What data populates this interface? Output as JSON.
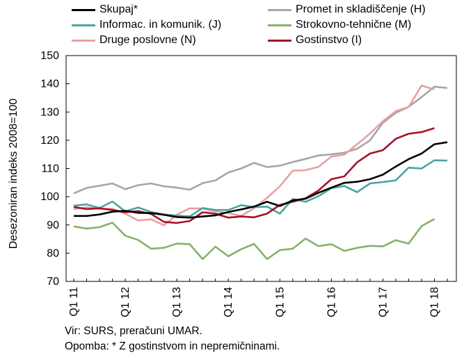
{
  "chart_data": {
    "type": "line",
    "title": "",
    "xlabel": "",
    "ylabel": "Desezoniran indeks 2008=100",
    "ylim": [
      70,
      150
    ],
    "yticks": [
      70,
      80,
      90,
      100,
      110,
      120,
      130,
      140,
      150
    ],
    "x_tick_labels": [
      "Q1 11",
      "Q1 12",
      "Q1 13",
      "Q1 14",
      "Q1 15",
      "Q1 16",
      "Q1 17",
      "Q1 18"
    ],
    "x": [
      "Q1 11",
      "Q2 11",
      "Q3 11",
      "Q4 11",
      "Q1 12",
      "Q2 12",
      "Q3 12",
      "Q4 12",
      "Q1 13",
      "Q2 13",
      "Q3 13",
      "Q4 13",
      "Q1 14",
      "Q2 14",
      "Q3 14",
      "Q4 14",
      "Q1 15",
      "Q2 15",
      "Q3 15",
      "Q4 15",
      "Q1 16",
      "Q2 16",
      "Q3 16",
      "Q4 16",
      "Q1 17",
      "Q2 17",
      "Q3 17",
      "Q4 17",
      "Q1 18",
      "Q2 18"
    ],
    "grid": false,
    "legend_position": "top",
    "series": [
      {
        "name": "Skupaj*",
        "color": "#000000",
        "values": [
          93.2,
          93.2,
          93.7,
          94.7,
          95.0,
          94.3,
          94.2,
          93.6,
          92.8,
          92.6,
          93.0,
          93.4,
          94.6,
          95.5,
          96.5,
          98.2,
          96.7,
          98.7,
          99.3,
          101.4,
          103.2,
          104.9,
          105.3,
          106.2,
          107.8,
          110.7,
          113.3,
          115.3,
          118.6,
          119.3
        ]
      },
      {
        "name": "Promet in skladiščenje (H)",
        "color": "#a6a6a6",
        "values": [
          101.2,
          103.1,
          103.9,
          104.7,
          102.7,
          104.1,
          104.7,
          103.7,
          103.2,
          102.5,
          104.8,
          105.8,
          108.6,
          110.0,
          112.0,
          110.5,
          111.0,
          112.3,
          113.4,
          114.6,
          115.0,
          115.6,
          117.0,
          120.0,
          126.2,
          129.7,
          131.8,
          135.3,
          139.0,
          138.5
        ]
      },
      {
        "name": "Informac. in komunik. (J)",
        "color": "#4aa3a1",
        "values": [
          96.8,
          97.3,
          96.0,
          98.3,
          94.8,
          96.2,
          94.6,
          93.7,
          93.3,
          93.0,
          96.0,
          95.3,
          95.3,
          97.0,
          96.3,
          96.5,
          94.0,
          99.2,
          98.2,
          100.2,
          103.0,
          103.8,
          101.6,
          104.7,
          105.2,
          105.8,
          110.3,
          110.0,
          112.9,
          112.8
        ]
      },
      {
        "name": "Strokovno-tehnične (M)",
        "color": "#84b26a",
        "values": [
          89.5,
          88.7,
          89.2,
          90.8,
          86.2,
          84.7,
          81.6,
          81.9,
          83.4,
          83.2,
          77.9,
          82.3,
          78.9,
          81.4,
          83.3,
          77.9,
          81.1,
          81.6,
          85.2,
          82.5,
          83.2,
          80.8,
          81.9,
          82.6,
          82.4,
          84.6,
          83.4,
          89.6,
          92.1,
          null
        ]
      },
      {
        "name": "Druge poslovne (N)",
        "color": "#e8a1a1",
        "values": [
          95.6,
          96.3,
          95.7,
          95.7,
          94.0,
          91.6,
          92.0,
          89.9,
          93.6,
          95.9,
          95.8,
          94.8,
          94.2,
          93.2,
          95.9,
          99.6,
          103.7,
          109.2,
          109.4,
          110.6,
          114.2,
          114.9,
          118.6,
          122.4,
          126.8,
          130.3,
          131.8,
          139.4,
          138.0,
          null
        ]
      },
      {
        "name": "Gostinstvo (I)",
        "color": "#a3122a",
        "values": [
          96.4,
          95.6,
          95.9,
          95.3,
          94.5,
          94.9,
          93.9,
          91.1,
          90.7,
          91.4,
          94.5,
          94.0,
          92.6,
          93.0,
          92.7,
          94.0,
          97.1,
          98.2,
          99.5,
          102.2,
          106.2,
          107.2,
          112.2,
          115.3,
          116.5,
          120.5,
          122.3,
          122.9,
          124.3,
          null
        ]
      }
    ]
  },
  "notes": {
    "source": "Vir: SURS, preračuni UMAR.",
    "remark": "Opomba: * Z gostinstvom in nepremičninami."
  }
}
